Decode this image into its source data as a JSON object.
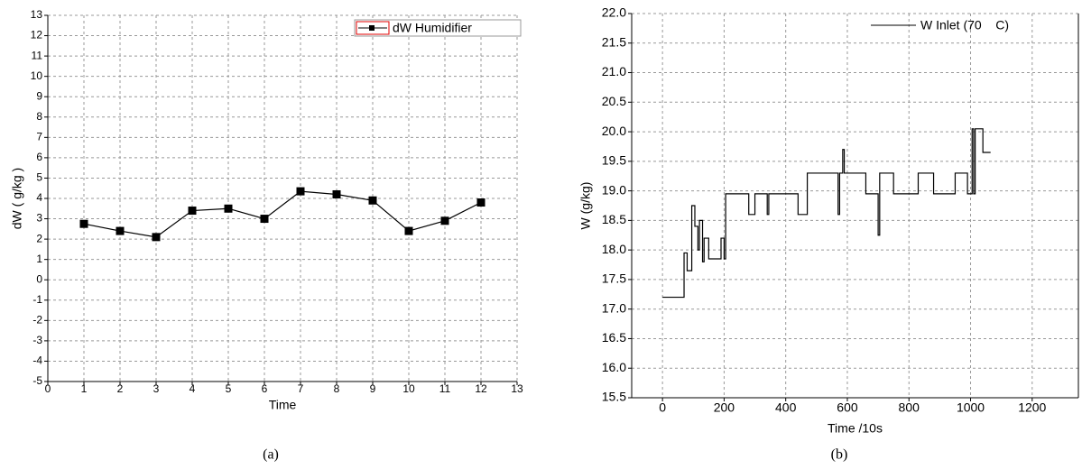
{
  "chart_data": [
    {
      "type": "line",
      "markers": true,
      "color": "#000000",
      "x": [
        1,
        2,
        3,
        4,
        5,
        6,
        7,
        8,
        9,
        10,
        11,
        12
      ],
      "series": [
        {
          "name": "dW Humidifier",
          "color": "#000000",
          "values": [
            2.75,
            2.4,
            2.1,
            3.4,
            3.5,
            3.0,
            4.35,
            4.2,
            3.9,
            2.4,
            2.9,
            3.8
          ]
        }
      ],
      "xlim": [
        0,
        13
      ],
      "xticks": [
        0,
        1,
        2,
        3,
        4,
        5,
        6,
        7,
        8,
        9,
        10,
        11,
        12,
        13
      ],
      "ylim": [
        -5,
        13
      ],
      "yticks": [
        -5,
        -4,
        -3,
        -2,
        -1,
        0,
        1,
        2,
        3,
        4,
        5,
        6,
        7,
        8,
        9,
        10,
        11,
        12,
        13
      ],
      "xlabel": "Time",
      "ylabel": "dW ( g/kg )",
      "caption": "(a)",
      "grid": true,
      "legend": "top-right"
    },
    {
      "type": "line",
      "markers": false,
      "color": "#000000",
      "x": [
        0,
        70,
        70,
        80,
        80,
        95,
        95,
        105,
        105,
        115,
        115,
        120,
        120,
        130,
        130,
        135,
        135,
        150,
        150,
        190,
        190,
        200,
        200,
        205,
        205,
        280,
        280,
        300,
        300,
        340,
        340,
        345,
        345,
        440,
        440,
        470,
        470,
        570,
        570,
        575,
        575,
        585,
        585,
        590,
        590,
        660,
        660,
        700,
        700,
        705,
        705,
        750,
        750,
        830,
        830,
        880,
        880,
        950,
        950,
        990,
        990,
        1005,
        1005,
        1010,
        1010,
        1015,
        1015,
        1040,
        1040,
        1065
      ],
      "series": [
        {
          "name": "W Inlet (70    C)",
          "color": "#000000",
          "values": [
            17.2,
            17.2,
            17.95,
            17.95,
            17.65,
            17.65,
            18.75,
            18.75,
            18.4,
            18.4,
            18.0,
            18.0,
            18.5,
            18.5,
            17.8,
            17.8,
            18.2,
            18.2,
            17.85,
            17.85,
            18.2,
            18.2,
            17.85,
            17.85,
            18.95,
            18.95,
            18.6,
            18.6,
            18.95,
            18.95,
            18.6,
            18.6,
            18.95,
            18.95,
            18.6,
            18.6,
            19.3,
            19.3,
            18.6,
            18.6,
            19.3,
            19.3,
            19.7,
            19.7,
            19.3,
            19.3,
            18.95,
            18.95,
            18.25,
            18.25,
            19.3,
            19.3,
            18.95,
            18.95,
            19.3,
            19.3,
            18.95,
            18.95,
            19.3,
            19.3,
            18.95,
            18.95,
            20.05,
            20.05,
            18.95,
            18.95,
            20.05,
            20.05,
            19.65,
            19.65
          ]
        }
      ],
      "xlim": [
        -100,
        1350
      ],
      "xticks": [
        0,
        200,
        400,
        600,
        800,
        1000,
        1200
      ],
      "ylim": [
        15.5,
        22.0
      ],
      "yticks": [
        15.5,
        {
          "value": 16,
          "label": "16.0"
        },
        16.5,
        {
          "value": 17,
          "label": "17.0"
        },
        17.5,
        {
          "value": 18,
          "label": "18.0"
        },
        18.5,
        {
          "value": 19,
          "label": "19.0"
        },
        19.5,
        {
          "value": 20,
          "label": "20.0"
        },
        20.5,
        {
          "value": 21,
          "label": "21.0"
        },
        21.5,
        {
          "value": 22,
          "label": "22.0"
        }
      ],
      "xlabel": "Time /10s",
      "ylabel": "W (g/kg)",
      "caption": "(b)",
      "grid": true,
      "legend": "top-right"
    }
  ]
}
